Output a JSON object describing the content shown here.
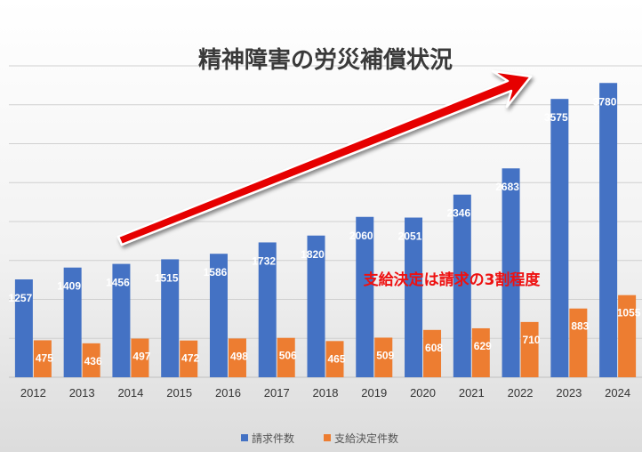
{
  "chart_data": {
    "type": "bar",
    "title": "精神障害の労災補償状況",
    "annotation": "支給決定は請求の3割程度",
    "categories": [
      "2012",
      "2013",
      "2014",
      "2015",
      "2016",
      "2017",
      "2018",
      "2019",
      "2020",
      "2021",
      "2022",
      "2023",
      "2024"
    ],
    "series": [
      {
        "name": "請求件数",
        "color": "#4472c4",
        "values": [
          1257,
          1409,
          1456,
          1515,
          1586,
          1732,
          1820,
          2060,
          2051,
          2346,
          2683,
          3575,
          3780
        ]
      },
      {
        "name": "支給決定件数",
        "color": "#ed7d31",
        "values": [
          475,
          436,
          497,
          472,
          498,
          506,
          465,
          509,
          608,
          629,
          710,
          883,
          1055
        ]
      }
    ],
    "ylim": [
      0,
      4000
    ],
    "grid": true,
    "legend_position": "bottom",
    "trend_arrow_color": "#e60000"
  }
}
